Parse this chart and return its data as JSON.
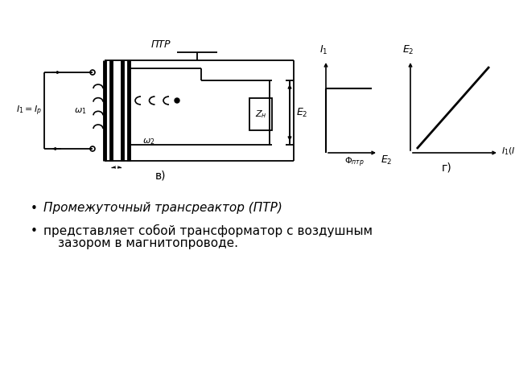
{
  "background_color": "#ffffff",
  "text_bullet1": "Промежуточный трансреактор (ПТР)",
  "text_bullet2_line1": "представляет собой трансформатор с воздушным",
  "text_bullet2_line2": "зазором в магнитопроводе.",
  "label_ptr": "ПТР",
  "label_v": "в)",
  "label_g": "г)",
  "line_color": "#000000"
}
